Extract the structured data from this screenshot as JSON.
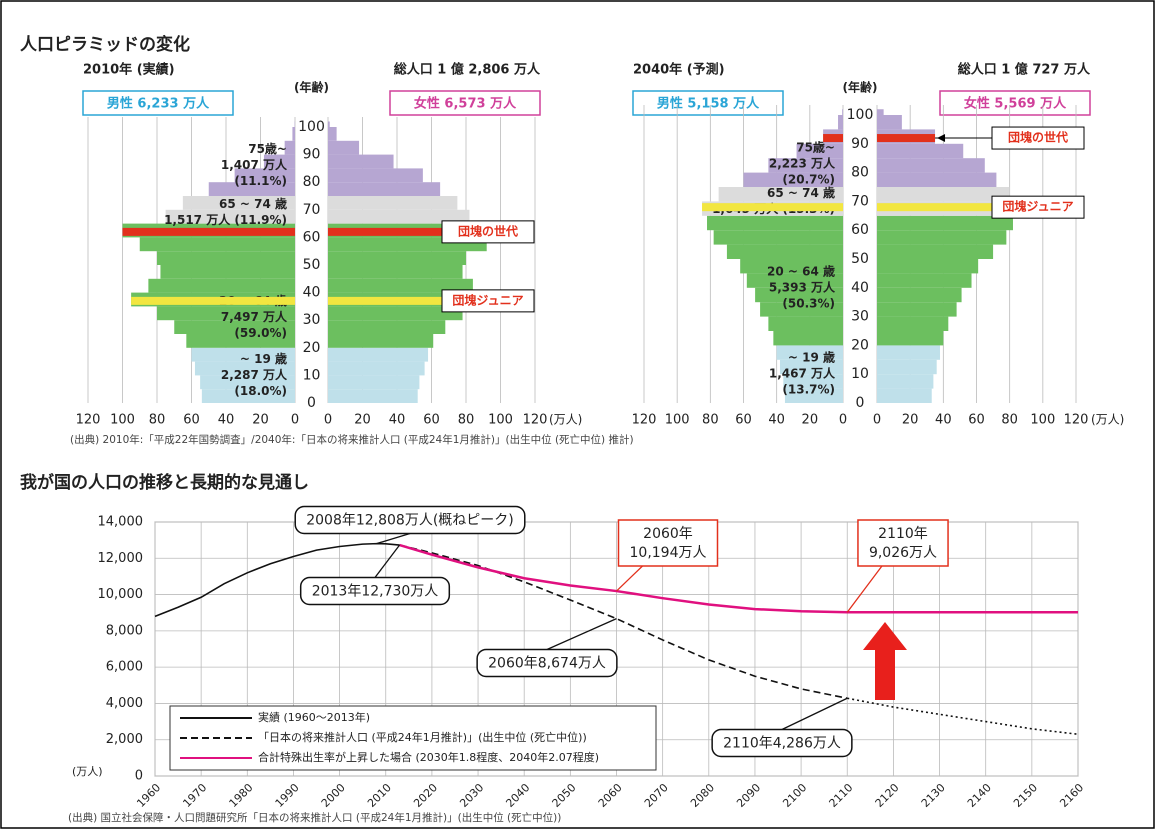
{
  "page": {
    "title1": "人口ピラミッドの変化",
    "source1": "(出典) 2010年:「平成22年国勢調査」/2040年:「日本の将来推計人口 (平成24年1月推計)」(出生中位 (死亡中位) 推計)",
    "title2": "我が国の人口の推移と長期的な見通し",
    "source2": "(出典) 国立社会保障・人口問題研究所「日本の将来推計人口 (平成24年1月推計)」(出生中位 (死亡中位))"
  },
  "chart_data": [
    {
      "type": "pyramid",
      "title": "2010年 (実績)",
      "total": "総人口 1 億 2,806 万人",
      "age_label": "(年齢)",
      "unit": "(万人)",
      "x": [
        0,
        5,
        10,
        15,
        20,
        25,
        30,
        35,
        40,
        45,
        50,
        55,
        60,
        65,
        70,
        75,
        80,
        85,
        90,
        95,
        100
      ],
      "series": [
        {
          "name": "男性 6,233 万人",
          "color": "#2aa5d6",
          "side": "left",
          "values": [
            54,
            55,
            58,
            60,
            63,
            70,
            80,
            95,
            85,
            78,
            80,
            90,
            100,
            75,
            65,
            50,
            35,
            18,
            6,
            1.5,
            0.2
          ]
        },
        {
          "name": "女性 6,573 万人",
          "color": "#d0409a",
          "side": "right",
          "values": [
            52,
            53,
            56,
            58,
            61,
            68,
            78,
            93,
            84,
            78,
            80,
            92,
            103,
            82,
            75,
            65,
            55,
            38,
            18,
            5,
            1
          ]
        }
      ],
      "xlim": [
        0,
        120
      ],
      "xticks": [
        0,
        20,
        40,
        60,
        80,
        100,
        120
      ],
      "ylim": [
        0,
        100
      ],
      "yticks": [
        0,
        10,
        20,
        30,
        40,
        50,
        60,
        70,
        80,
        90,
        100
      ],
      "groups": [
        {
          "from": 0,
          "to": 19,
          "color": "#bfe0ea",
          "label": [
            "~ 19 歳",
            "2,287 万人",
            "(18.0%)"
          ],
          "label_age": 10
        },
        {
          "from": 20,
          "to": 64,
          "color": "#6cbf5f",
          "label": [
            "20 ~ 64 歳",
            "7,497 万人",
            "(59.0%)"
          ],
          "label_age": 31
        },
        {
          "from": 65,
          "to": 74,
          "color": "#dcdcdc",
          "label": [
            "65 ~ 74 歳",
            "1,517 万人 (11.9%)"
          ],
          "label_age": 69
        },
        {
          "from": 75,
          "to": 120,
          "color": "#b6a6d2",
          "label": [
            "75歳~",
            "1,407 万人",
            "(11.1%)"
          ],
          "label_age": 86
        }
      ],
      "highlights": [
        {
          "age": 62,
          "label": "団塊の世代",
          "color": "#e2301c"
        },
        {
          "age": 37,
          "label": "団塊ジュニア",
          "color": "#f2e640"
        }
      ]
    },
    {
      "type": "pyramid",
      "title": "2040年 (予測)",
      "total": "総人口 1 億 727 万人",
      "age_label": "(年齢)",
      "unit": "(万人)",
      "x": [
        0,
        5,
        10,
        15,
        20,
        25,
        30,
        35,
        40,
        45,
        50,
        55,
        60,
        65,
        70,
        75,
        80,
        85,
        90,
        95,
        100
      ],
      "series": [
        {
          "name": "男性 5,158 万人",
          "color": "#2aa5d6",
          "side": "left",
          "values": [
            35,
            36,
            38,
            40,
            42,
            45,
            50,
            53,
            58,
            62,
            70,
            78,
            82,
            85,
            75,
            60,
            45,
            28,
            12,
            3,
            0.5
          ]
        },
        {
          "name": "女性 5,569 万人",
          "color": "#d0409a",
          "side": "right",
          "values": [
            33,
            34,
            36,
            38,
            40,
            43,
            48,
            51,
            57,
            61,
            70,
            78,
            82,
            86,
            80,
            72,
            65,
            52,
            35,
            15,
            4
          ]
        }
      ],
      "xlim": [
        0,
        120
      ],
      "xticks": [
        0,
        20,
        40,
        60,
        80,
        100,
        120
      ],
      "ylim": [
        0,
        100
      ],
      "yticks": [
        0,
        10,
        20,
        30,
        40,
        50,
        60,
        70,
        80,
        90,
        100
      ],
      "groups": [
        {
          "from": 0,
          "to": 19,
          "color": "#bfe0ea",
          "label": [
            "~ 19 歳",
            "1,467 万人",
            "(13.7%)"
          ],
          "label_age": 10
        },
        {
          "from": 20,
          "to": 64,
          "color": "#6cbf5f",
          "label": [
            "20 ~ 64 歳",
            "5,393 万人",
            "(50.3%)"
          ],
          "label_age": 40
        },
        {
          "from": 65,
          "to": 74,
          "color": "#dcdcdc",
          "label": [
            "65 ~ 74 歳",
            "1,645 万人 (15.3%)"
          ],
          "label_age": 70
        },
        {
          "from": 75,
          "to": 120,
          "color": "#b6a6d2",
          "label": [
            "75歳~",
            "2,223 万人",
            "(20.7%)"
          ],
          "label_age": 83
        }
      ],
      "highlights": [
        {
          "age": 92,
          "label": "団塊の世代",
          "color": "#e2301c"
        },
        {
          "age": 68,
          "label": "団塊ジュニア",
          "color": "#f2e640"
        }
      ]
    },
    {
      "type": "line",
      "unit": "(万人)",
      "xlim": [
        1960,
        2160
      ],
      "xticks": [
        1960,
        1970,
        1980,
        1990,
        2000,
        2010,
        2020,
        2030,
        2040,
        2050,
        2060,
        2070,
        2080,
        2090,
        2100,
        2110,
        2120,
        2130,
        2140,
        2150,
        2160
      ],
      "ylim": [
        0,
        14000
      ],
      "yticks": [
        0,
        {
          "value": 2000,
          "label": "2,000"
        },
        {
          "value": 4000,
          "label": "4,000"
        },
        {
          "value": 6000,
          "label": "6,000"
        },
        {
          "value": 8000,
          "label": "8,000"
        },
        {
          "value": 10000,
          "label": "10,000"
        },
        {
          "value": 12000,
          "label": "12,000"
        },
        {
          "value": 14000,
          "label": "14,000"
        }
      ],
      "grid": true,
      "series": [
        {
          "name": "実績 (1960～2013年)",
          "color": "#111111",
          "dash": "solid",
          "x": [
            1960,
            1965,
            1970,
            1975,
            1980,
            1985,
            1990,
            1995,
            2000,
            2005,
            2008,
            2010,
            2013
          ],
          "values": [
            8800,
            9300,
            9850,
            10600,
            11200,
            11700,
            12100,
            12450,
            12650,
            12780,
            12808,
            12800,
            12730
          ]
        },
        {
          "name": "「日本の将来推計人口 (平成24年1月推計)」(出生中位 (死亡中位))",
          "color": "#111111",
          "dash": "dashed",
          "dotted_from": 2110,
          "x": [
            2013,
            2020,
            2030,
            2040,
            2050,
            2060,
            2070,
            2080,
            2090,
            2100,
            2110,
            2120,
            2130,
            2140,
            2150,
            2160
          ],
          "values": [
            12730,
            12300,
            11600,
            10700,
            9700,
            8674,
            7500,
            6400,
            5500,
            4800,
            4286,
            3800,
            3400,
            3000,
            2600,
            2300
          ]
        },
        {
          "name": "合計特殊出生率が上昇した場合 (2030年1.8程度、2040年2.07程度)",
          "color": "#e0107f",
          "dash": "solid",
          "x": [
            2013,
            2020,
            2030,
            2040,
            2050,
            2060,
            2070,
            2080,
            2090,
            2100,
            2110,
            2120,
            2130,
            2140,
            2150,
            2160
          ],
          "values": [
            12730,
            12200,
            11500,
            10900,
            10500,
            10194,
            9800,
            9450,
            9200,
            9080,
            9026,
            9026,
            9026,
            9026,
            9026,
            9026
          ]
        }
      ],
      "callouts": [
        {
          "text": [
            "2008年12,808万人(概ねピーク)"
          ],
          "x": 2008,
          "y": 12808,
          "color": "#111111"
        },
        {
          "text": [
            "2013年12,730万人"
          ],
          "x": 2013,
          "y": 12730,
          "color": "#111111"
        },
        {
          "text": [
            "2060年8,674万人"
          ],
          "x": 2060,
          "y": 8674,
          "color": "#111111"
        },
        {
          "text": [
            "2110年4,286万人"
          ],
          "x": 2110,
          "y": 4286,
          "color": "#111111"
        },
        {
          "text": [
            "2060年",
            "10,194万人"
          ],
          "x": 2060,
          "y": 10194,
          "color": "#e2301c"
        },
        {
          "text": [
            "2110年",
            "9,026万人"
          ],
          "x": 2110,
          "y": 9026,
          "color": "#e2301c"
        }
      ]
    }
  ]
}
